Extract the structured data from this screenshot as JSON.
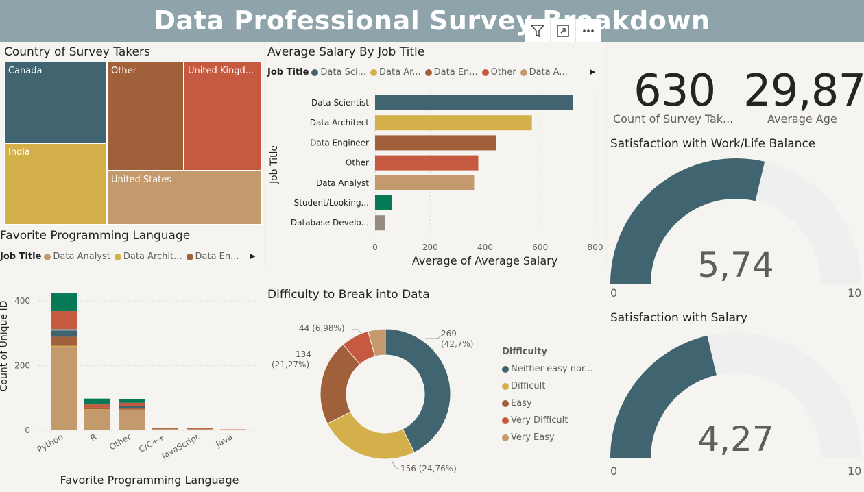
{
  "header": {
    "title": "Data Professional Survey Breakdown"
  },
  "visual_header": {
    "icons": [
      "filter-icon",
      "focus-mode-icon",
      "more-options-icon"
    ]
  },
  "country": {
    "title": "Country of Survey Takers",
    "cells": [
      {
        "label": "Canada",
        "color": "#406570"
      },
      {
        "label": "India",
        "color": "#d4b04a"
      },
      {
        "label": "Other",
        "color": "#a0603a"
      },
      {
        "label": "United Kingd...",
        "color": "#c65a40"
      },
      {
        "label": "United States",
        "color": "#c49a6c"
      }
    ]
  },
  "avg_salary": {
    "title": "Average Salary By Job Title",
    "legend_label": "Job Title",
    "legend": [
      {
        "label": "Data Sci...",
        "color": "#406570"
      },
      {
        "label": "Data Ar...",
        "color": "#d4b04a"
      },
      {
        "label": "Data En...",
        "color": "#a0603a"
      },
      {
        "label": "Other",
        "color": "#c65a40"
      },
      {
        "label": "Data A...",
        "color": "#c49a6c"
      }
    ],
    "ylabel": "Job Title",
    "xlabel": "Average of Average Salary",
    "ticks": [
      "0",
      "200",
      "400",
      "600",
      "800"
    ]
  },
  "fav_lang": {
    "title": "Favorite Programming Language",
    "legend_label": "Job Title",
    "legend": [
      {
        "label": "Data Analyst",
        "color": "#c49a6c"
      },
      {
        "label": "Data Archit...",
        "color": "#d4b04a"
      },
      {
        "label": "Data En...",
        "color": "#a0603a"
      }
    ],
    "ylabel": "Count of Unique ID",
    "xlabel": "Favorite Programming Language",
    "ticks": [
      "0",
      "200",
      "400"
    ]
  },
  "difficulty": {
    "title": "Difficulty to Break into Data",
    "legend_title": "Difficulty",
    "legend": [
      {
        "label": "Neither easy nor...",
        "color": "#406570"
      },
      {
        "label": "Difficult",
        "color": "#d4b04a"
      },
      {
        "label": "Easy",
        "color": "#a0603a"
      },
      {
        "label": "Very Difficult",
        "color": "#c65a40"
      },
      {
        "label": "Very Easy",
        "color": "#c49a6c"
      }
    ],
    "labels": {
      "neither_a": "269",
      "neither_b": "(42,7%)",
      "difficult": "156 (24,76%)",
      "easy_a": "134",
      "easy_b": "(21,27%)",
      "very_difficult": "44 (6,98%)"
    }
  },
  "kpis": {
    "count_value": "630",
    "count_label": "Count of Survey Tak...",
    "age_value": "29,87",
    "age_label": "Average Age"
  },
  "gauge_wlb": {
    "title": "Satisfaction with Work/Life Balance",
    "value_text": "5,74",
    "value": 5.74,
    "min": "0",
    "max": "10"
  },
  "gauge_salary": {
    "title": "Satisfaction with Salary",
    "value_text": "4,27",
    "value": 4.27,
    "min": "0",
    "max": "10"
  },
  "chart_data": [
    {
      "type": "bar",
      "orientation": "horizontal",
      "title": "Average Salary By Job Title",
      "xlabel": "Average of Average Salary",
      "ylabel": "Job Title",
      "xlim": [
        0,
        800
      ],
      "categories": [
        "Data Scientist",
        "Data Architect",
        "Data Engineer",
        "Other",
        "Data Analyst",
        "Student/Looking...",
        "Database Develo..."
      ],
      "values": [
        720,
        570,
        440,
        375,
        360,
        60,
        35
      ],
      "colors": [
        "#406570",
        "#d4b04a",
        "#a0603a",
        "#c65a40",
        "#c49a6c",
        "#067a57",
        "#958b83"
      ]
    },
    {
      "type": "bar",
      "stacked": true,
      "title": "Favorite Programming Language",
      "xlabel": "Favorite Programming Language",
      "ylabel": "Count of Unique ID",
      "ylim": [
        0,
        440
      ],
      "categories": [
        "Python",
        "R",
        "Other",
        "C/C++",
        "JavaScript",
        "Java"
      ],
      "series": [
        {
          "name": "Data Analyst",
          "color": "#c49a6c",
          "values": [
            258,
            63,
            62,
            4,
            4,
            2
          ]
        },
        {
          "name": "Data Architect",
          "color": "#d4b04a",
          "values": [
            3,
            2,
            2,
            0,
            0,
            0
          ]
        },
        {
          "name": "Data Engineer",
          "color": "#a0603a",
          "values": [
            28,
            5,
            5,
            2,
            1,
            0
          ]
        },
        {
          "series_color_name": "",
          "color": "#406570",
          "values": [
            19,
            0,
            6,
            0,
            0,
            0
          ]
        },
        {
          "color": "#9a9a9a",
          "values": [
            5,
            0,
            0,
            0,
            0,
            0
          ]
        },
        {
          "color": "#c65a40",
          "values": [
            55,
            10,
            10,
            2,
            2,
            1
          ]
        },
        {
          "color": "#067a57",
          "values": [
            55,
            18,
            12,
            0,
            1,
            0
          ]
        }
      ]
    },
    {
      "type": "pie",
      "donut": true,
      "title": "Difficulty to Break into Data",
      "categories": [
        "Neither easy nor difficult",
        "Difficult",
        "Easy",
        "Very Difficult",
        "Very Easy"
      ],
      "values": [
        269,
        156,
        134,
        44,
        27
      ],
      "colors": [
        "#406570",
        "#d4b04a",
        "#a0603a",
        "#c65a40",
        "#c49a6c"
      ]
    }
  ]
}
